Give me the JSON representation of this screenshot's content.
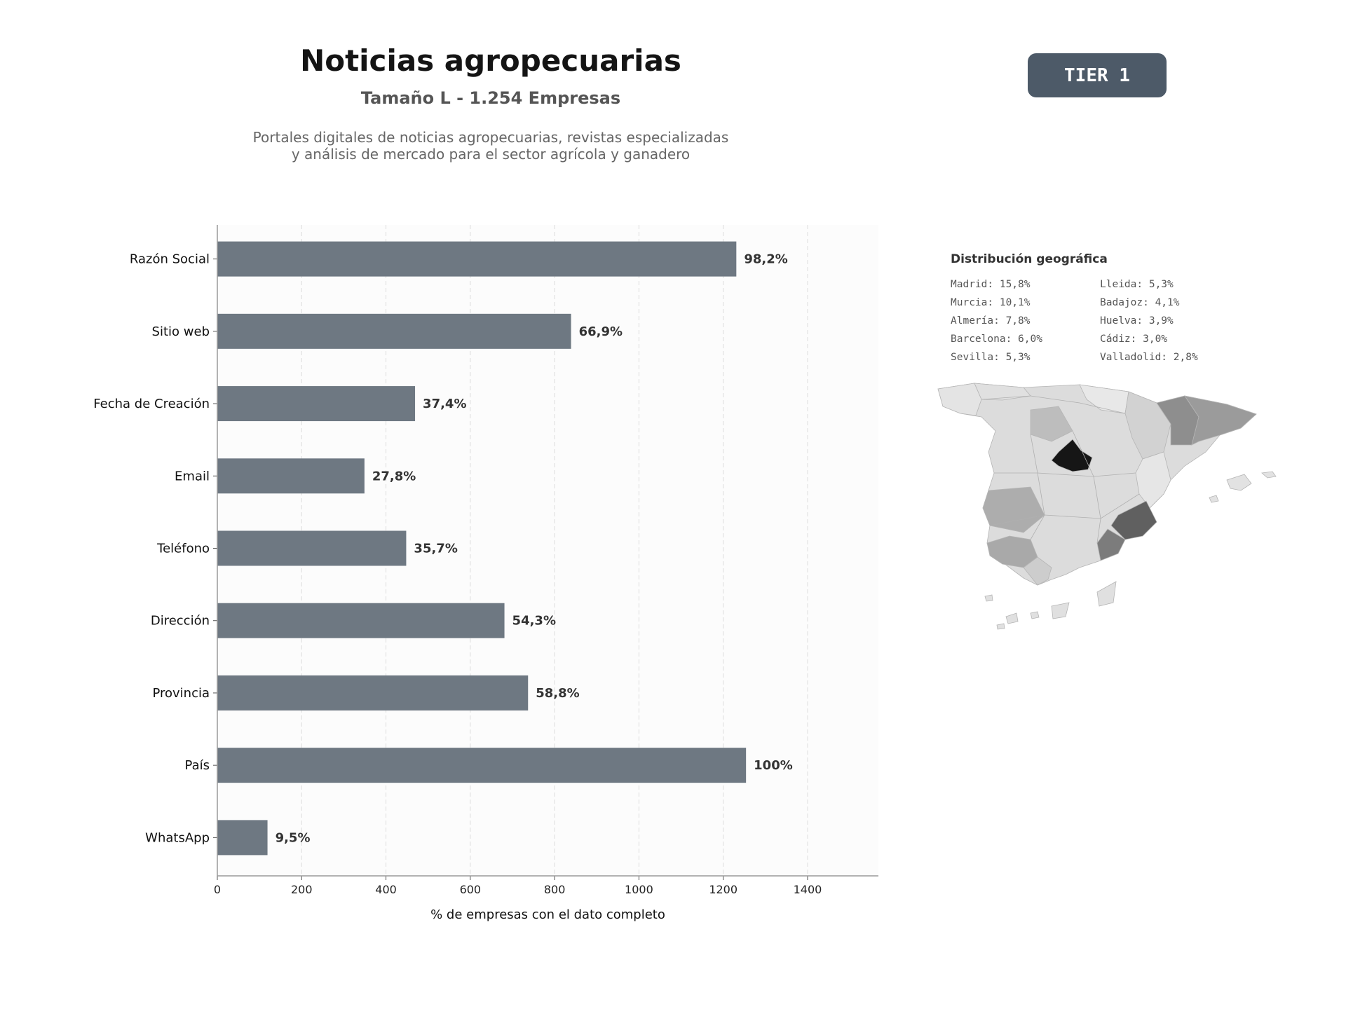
{
  "header": {
    "title": "Noticias agropecuarias",
    "subtitle": "Tamaño L - 1.254 Empresas",
    "description_line1": "Portales digitales de noticias agropecuarias, revistas especializadas",
    "description_line2": "y análisis de mercado para el sector agrícola y ganadero",
    "badge": "TIER 1"
  },
  "colors": {
    "bar": "#6e7882",
    "badge_bg": "#4d5a68",
    "grid": "#dddddd",
    "plot_bg": "#fcfcfc"
  },
  "chart_data": {
    "type": "bar",
    "orientation": "horizontal",
    "categories": [
      "Razón Social",
      "Sitio web",
      "Fecha de Creación",
      "Email",
      "Teléfono",
      "Dirección",
      "Provincia",
      "País",
      "WhatsApp"
    ],
    "values": [
      1231,
      839,
      469,
      349,
      448,
      681,
      737,
      1254,
      119
    ],
    "data_labels": [
      "98,2%",
      "66,9%",
      "37,4%",
      "27,8%",
      "35,7%",
      "54,3%",
      "58,8%",
      "100%",
      "9,5%"
    ],
    "xlabel": "% de empresas con el dato completo",
    "ylabel": "",
    "xlim": [
      0,
      1568
    ],
    "xticks": [
      0,
      200,
      400,
      600,
      800,
      1000,
      1200,
      1400
    ],
    "grid": "vertical dashed"
  },
  "geo": {
    "title": "Distribución geográfica",
    "items": [
      "Madrid: 15,8%",
      "Lleida: 5,3%",
      "Murcia: 10,1%",
      "Badajoz: 4,1%",
      "Almería: 7,8%",
      "Huelva: 3,9%",
      "Barcelona: 6,0%",
      "Cádiz: 3,0%",
      "Sevilla: 5,3%",
      "Valladolid: 2,8%"
    ]
  }
}
